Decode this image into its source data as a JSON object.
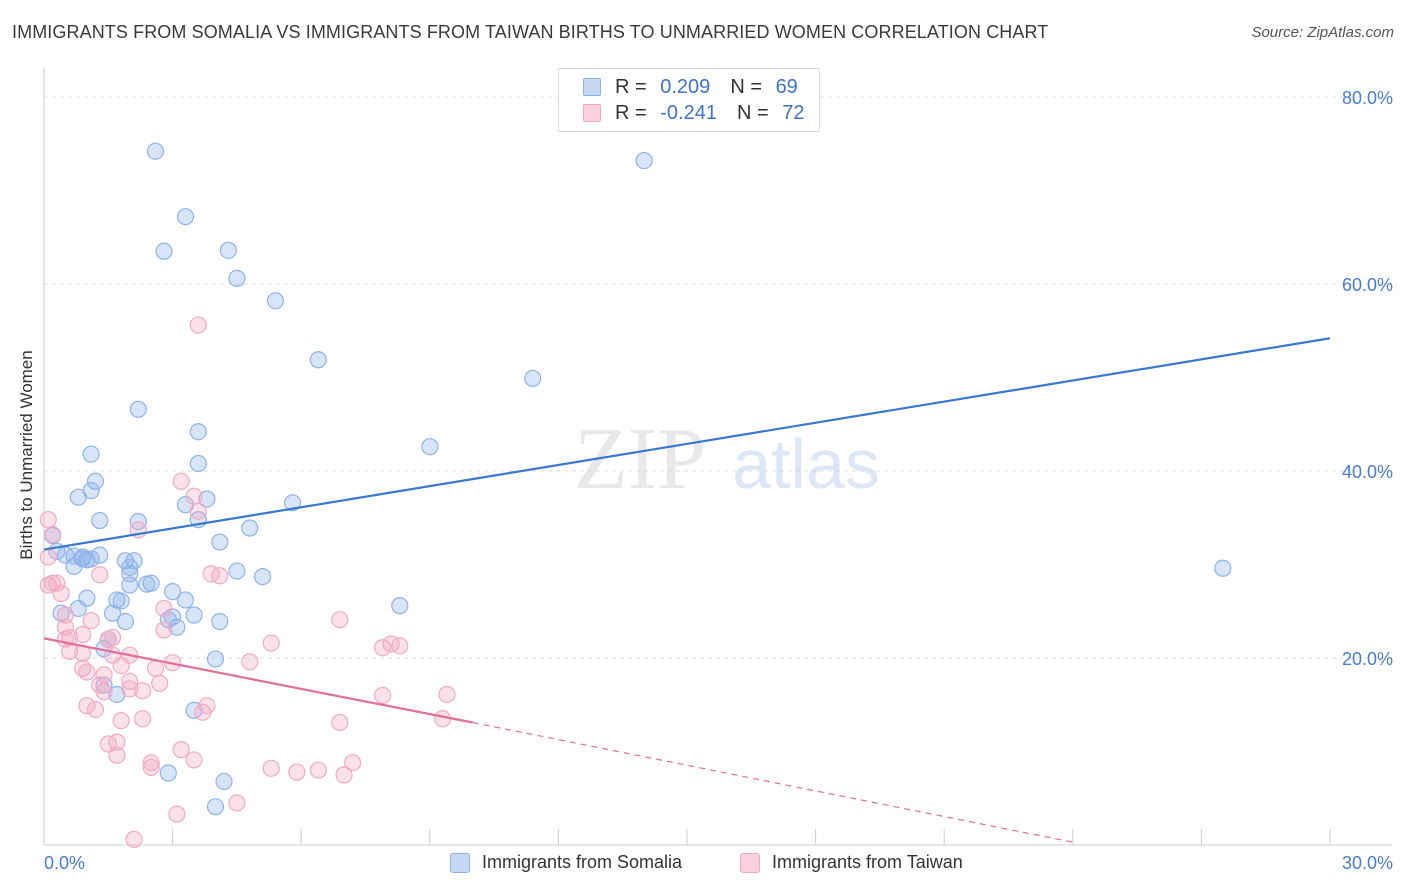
{
  "header": {
    "title": "IMMIGRANTS FROM SOMALIA VS IMMIGRANTS FROM TAIWAN BIRTHS TO UNMARRIED WOMEN CORRELATION CHART",
    "source": "Source: ZipAtlas.com"
  },
  "watermark": {
    "zip": "ZIP",
    "atlas": "atlas"
  },
  "legend": {
    "rows": [
      {
        "r_label": "R =",
        "r_value": "0.209",
        "n_label": "N =",
        "n_value": "69",
        "color": "#8fb3e8"
      },
      {
        "r_label": "R =",
        "r_value": "-0.241",
        "n_label": "N =",
        "n_value": "72",
        "color": "#f2a9c4"
      }
    ]
  },
  "chart_data": {
    "type": "scatter",
    "ylabel": "Births to Unmarried Women",
    "xlim": [
      0,
      30
    ],
    "ylim": [
      0,
      80
    ],
    "x_ticks": [
      "0.0%",
      "30.0%"
    ],
    "y_ticks": [
      "20.0%",
      "40.0%",
      "60.0%",
      "80.0%"
    ],
    "grid": true,
    "series": [
      {
        "name": "Immigrants from Somalia",
        "color": "#8fb3e8",
        "line_color": "#3a78d0",
        "trend": [
          [
            0,
            31.6
          ],
          [
            30,
            54.2
          ]
        ],
        "points": [
          [
            2.6,
            74.2
          ],
          [
            14.0,
            73.2
          ],
          [
            3.3,
            67.2
          ],
          [
            2.8,
            63.5
          ],
          [
            4.3,
            63.6
          ],
          [
            4.5,
            60.6
          ],
          [
            5.4,
            58.2
          ],
          [
            6.4,
            51.9
          ],
          [
            11.4,
            49.9
          ],
          [
            2.2,
            46.6
          ],
          [
            3.6,
            44.2
          ],
          [
            9.0,
            42.6
          ],
          [
            1.1,
            41.8
          ],
          [
            3.6,
            40.8
          ],
          [
            1.2,
            38.9
          ],
          [
            1.1,
            37.9
          ],
          [
            0.8,
            37.2
          ],
          [
            3.8,
            37.0
          ],
          [
            3.3,
            36.4
          ],
          [
            5.8,
            36.6
          ],
          [
            1.3,
            34.7
          ],
          [
            2.2,
            34.6
          ],
          [
            3.6,
            34.8
          ],
          [
            4.8,
            33.9
          ],
          [
            0.2,
            33.1
          ],
          [
            4.1,
            32.4
          ],
          [
            0.3,
            31.4
          ],
          [
            0.5,
            31.0
          ],
          [
            0.7,
            30.9
          ],
          [
            1.0,
            30.5
          ],
          [
            0.9,
            30.8
          ],
          [
            2.1,
            30.4
          ],
          [
            0.7,
            29.8
          ],
          [
            2.0,
            29.7
          ],
          [
            4.5,
            29.3
          ],
          [
            2.0,
            29.0
          ],
          [
            5.1,
            28.7
          ],
          [
            2.5,
            28.0
          ],
          [
            2.0,
            27.8
          ],
          [
            3.0,
            27.1
          ],
          [
            1.0,
            26.4
          ],
          [
            1.7,
            26.2
          ],
          [
            1.8,
            26.1
          ],
          [
            3.3,
            26.2
          ],
          [
            8.3,
            25.6
          ],
          [
            0.8,
            25.3
          ],
          [
            0.4,
            24.8
          ],
          [
            1.6,
            24.8
          ],
          [
            3.5,
            24.6
          ],
          [
            3.0,
            24.4
          ],
          [
            1.9,
            23.9
          ],
          [
            4.1,
            23.9
          ],
          [
            3.1,
            23.3
          ],
          [
            1.5,
            22.0
          ],
          [
            1.4,
            21.0
          ],
          [
            4.0,
            19.9
          ],
          [
            1.4,
            17.1
          ],
          [
            1.7,
            16.1
          ],
          [
            3.5,
            14.4
          ],
          [
            2.9,
            7.7
          ],
          [
            4.2,
            6.8
          ],
          [
            4.0,
            4.1
          ],
          [
            27.5,
            29.6
          ],
          [
            1.1,
            30.6
          ],
          [
            0.9,
            30.6
          ],
          [
            2.4,
            27.9
          ],
          [
            1.9,
            30.4
          ],
          [
            1.3,
            31.0
          ],
          [
            2.9,
            24.1
          ]
        ],
        "radius": 8
      },
      {
        "name": "Immigrants from Taiwan",
        "color": "#f2a9c4",
        "line_color": "#e0709a",
        "trend": [
          [
            0,
            22.1
          ],
          [
            10,
            13.1
          ]
        ],
        "trend_dash": [
          [
            10,
            13.1
          ],
          [
            24,
            0.3
          ]
        ],
        "points": [
          [
            0.1,
            34.8
          ],
          [
            0.2,
            33.2
          ],
          [
            0.1,
            30.8
          ],
          [
            0.3,
            28.0
          ],
          [
            0.4,
            26.9
          ],
          [
            0.1,
            27.8
          ],
          [
            0.5,
            24.6
          ],
          [
            0.5,
            23.3
          ],
          [
            0.9,
            22.5
          ],
          [
            0.6,
            22.2
          ],
          [
            0.6,
            20.7
          ],
          [
            0.9,
            20.5
          ],
          [
            0.9,
            18.9
          ],
          [
            1.0,
            18.5
          ],
          [
            1.0,
            14.9
          ],
          [
            1.2,
            14.5
          ],
          [
            1.5,
            22.0
          ],
          [
            1.6,
            22.2
          ],
          [
            1.6,
            20.3
          ],
          [
            1.3,
            28.9
          ],
          [
            1.3,
            17.1
          ],
          [
            1.4,
            16.4
          ],
          [
            1.4,
            18.2
          ],
          [
            1.8,
            19.2
          ],
          [
            1.8,
            13.3
          ],
          [
            1.5,
            10.8
          ],
          [
            1.7,
            11.0
          ],
          [
            1.7,
            9.6
          ],
          [
            2.0,
            17.5
          ],
          [
            2.0,
            16.7
          ],
          [
            2.0,
            20.3
          ],
          [
            2.3,
            16.5
          ],
          [
            2.3,
            13.5
          ],
          [
            2.5,
            8.8
          ],
          [
            2.5,
            8.3
          ],
          [
            2.6,
            18.9
          ],
          [
            2.7,
            17.3
          ],
          [
            2.8,
            25.3
          ],
          [
            2.8,
            23.0
          ],
          [
            3.0,
            19.5
          ],
          [
            3.2,
            10.2
          ],
          [
            3.5,
            9.1
          ],
          [
            3.8,
            14.9
          ],
          [
            3.7,
            14.2
          ],
          [
            3.2,
            38.9
          ],
          [
            3.5,
            37.3
          ],
          [
            3.6,
            35.7
          ],
          [
            3.6,
            55.6
          ],
          [
            2.2,
            33.7
          ],
          [
            3.9,
            29.0
          ],
          [
            4.1,
            28.8
          ],
          [
            4.5,
            4.5
          ],
          [
            4.8,
            19.6
          ],
          [
            5.3,
            21.6
          ],
          [
            5.3,
            8.2
          ],
          [
            5.9,
            7.8
          ],
          [
            6.4,
            8.0
          ],
          [
            6.9,
            24.1
          ],
          [
            6.9,
            13.1
          ],
          [
            7.0,
            7.5
          ],
          [
            7.2,
            8.8
          ],
          [
            7.9,
            21.1
          ],
          [
            8.1,
            21.5
          ],
          [
            8.3,
            21.3
          ],
          [
            7.9,
            16.0
          ],
          [
            9.4,
            16.1
          ],
          [
            9.3,
            13.5
          ],
          [
            3.1,
            3.3
          ],
          [
            2.1,
            0.6
          ],
          [
            0.5,
            22.0
          ],
          [
            1.1,
            24.0
          ],
          [
            0.2,
            28.0
          ]
        ],
        "radius": 8
      }
    ]
  },
  "bottom_legend": [
    {
      "label": "Immigrants from Somalia",
      "color": "#8fb3e8"
    },
    {
      "label": "Immigrants from Taiwan",
      "color": "#f2a9c4"
    }
  ]
}
